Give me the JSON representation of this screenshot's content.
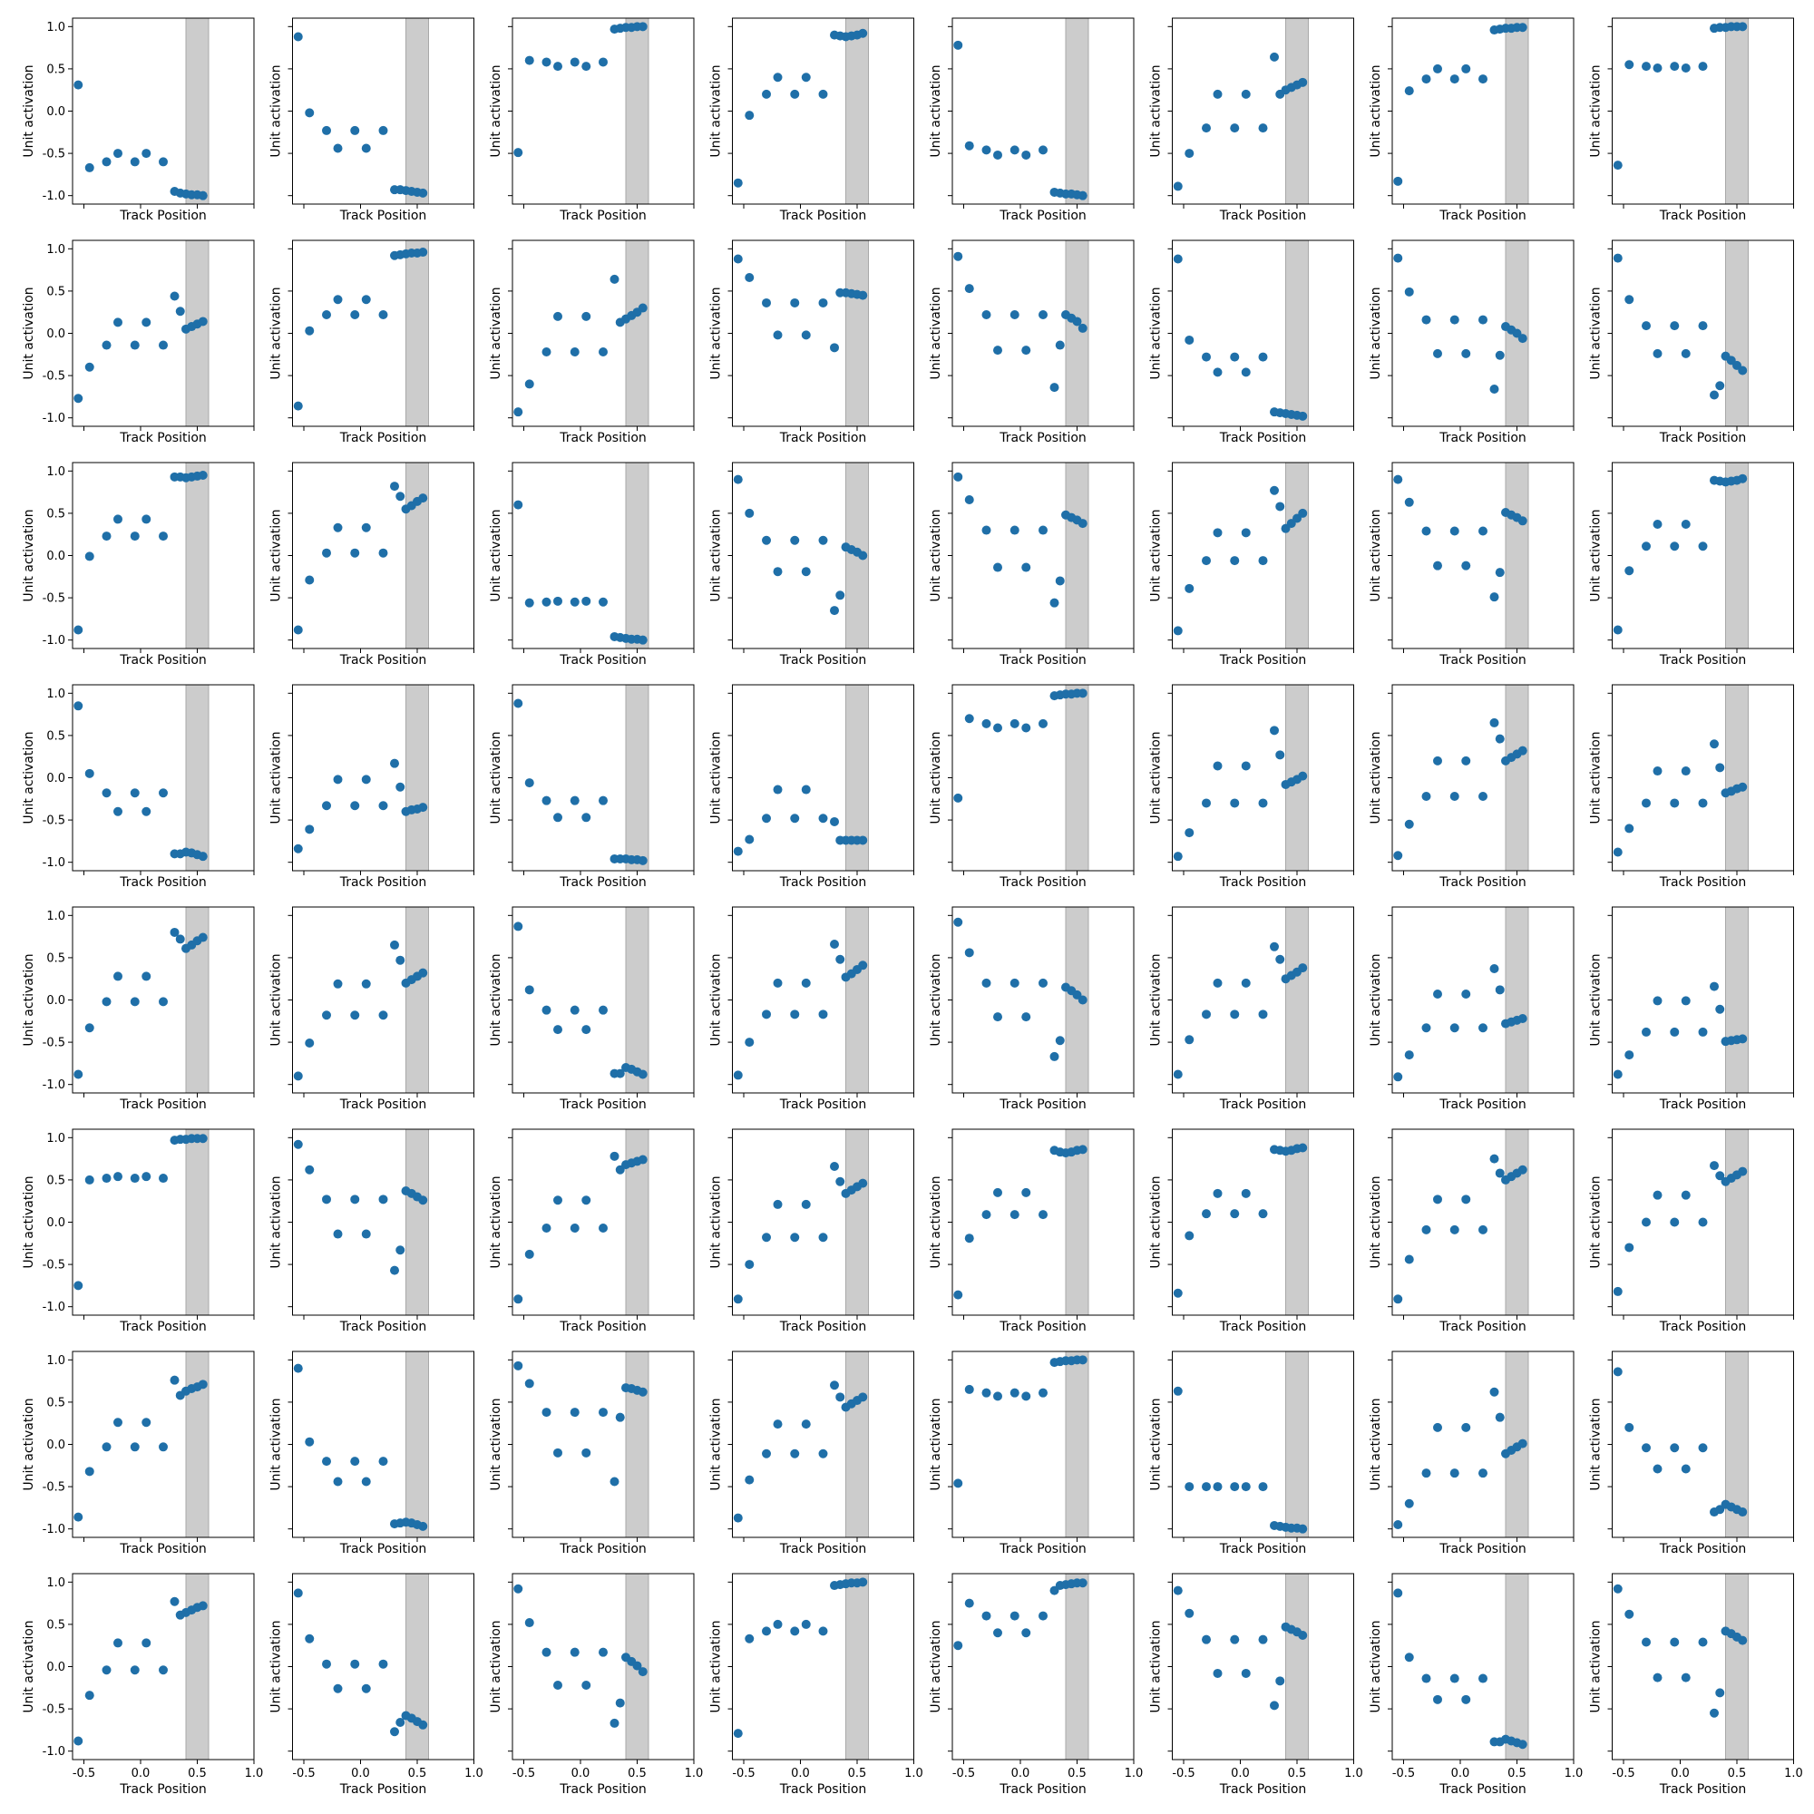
{
  "chart_data": {
    "type": "scatter",
    "layout": "8x8 grid of scatter subplots",
    "xlabel": "Track Position",
    "ylabel": "Unit activation",
    "xlim": [
      -0.6,
      1.0
    ],
    "ylim": [
      -1.1,
      1.1
    ],
    "x_ticks": [
      -0.5,
      0.0,
      0.5,
      1.0
    ],
    "x_tick_labels": [
      "-0.5",
      "0.0",
      "0.5",
      "1.0"
    ],
    "y_ticks": [
      -1.0,
      -0.5,
      0.0,
      0.5,
      1.0
    ],
    "y_tick_labels": [
      "-1.0",
      "-0.5",
      "0.0",
      "0.5",
      "1.0"
    ],
    "shaded_region": {
      "x_start": 0.4,
      "x_end": 0.6,
      "color": "#cccccc"
    },
    "marker_color": "#1f6fa8",
    "grid": false,
    "legend": "none",
    "x": [
      -0.55,
      -0.45,
      -0.3,
      -0.2,
      -0.05,
      0.05,
      0.2,
      0.3,
      0.35,
      0.4,
      0.45,
      0.5,
      0.55
    ],
    "subplots": [
      {
        "id": 1,
        "y": [
          0.31,
          -0.67,
          -0.6,
          -0.5,
          -0.6,
          -0.5,
          -0.6,
          -0.95,
          -0.97,
          -0.98,
          -0.99,
          -0.99,
          -1.0
        ]
      },
      {
        "id": 2,
        "y": [
          0.88,
          -0.02,
          -0.23,
          -0.44,
          -0.23,
          -0.44,
          -0.23,
          -0.93,
          -0.93,
          -0.94,
          -0.95,
          -0.96,
          -0.97
        ]
      },
      {
        "id": 3,
        "y": [
          -0.49,
          0.6,
          0.58,
          0.53,
          0.58,
          0.53,
          0.58,
          0.97,
          0.98,
          0.99,
          0.99,
          1.0,
          1.0
        ]
      },
      {
        "id": 4,
        "y": [
          -0.85,
          -0.05,
          0.2,
          0.4,
          0.2,
          0.4,
          0.2,
          0.9,
          0.89,
          0.88,
          0.89,
          0.9,
          0.92
        ]
      },
      {
        "id": 5,
        "y": [
          0.78,
          -0.41,
          -0.46,
          -0.52,
          -0.46,
          -0.52,
          -0.46,
          -0.96,
          -0.97,
          -0.98,
          -0.98,
          -0.99,
          -1.0
        ]
      },
      {
        "id": 6,
        "y": [
          -0.89,
          -0.5,
          -0.2,
          0.2,
          -0.2,
          0.2,
          -0.2,
          0.64,
          0.2,
          0.25,
          0.28,
          0.31,
          0.34
        ]
      },
      {
        "id": 7,
        "y": [
          -0.83,
          0.24,
          0.38,
          0.5,
          0.38,
          0.5,
          0.38,
          0.96,
          0.97,
          0.98,
          0.98,
          0.99,
          0.99
        ]
      },
      {
        "id": 8,
        "y": [
          -0.64,
          0.55,
          0.53,
          0.51,
          0.53,
          0.51,
          0.53,
          0.98,
          0.99,
          0.99,
          1.0,
          1.0,
          1.0
        ]
      },
      {
        "id": 9,
        "y": [
          -0.77,
          -0.4,
          -0.14,
          0.13,
          -0.14,
          0.13,
          -0.14,
          0.44,
          0.26,
          0.05,
          0.08,
          0.11,
          0.14
        ]
      },
      {
        "id": 10,
        "y": [
          -0.86,
          0.03,
          0.22,
          0.4,
          0.22,
          0.4,
          0.22,
          0.92,
          0.93,
          0.94,
          0.95,
          0.95,
          0.96
        ]
      },
      {
        "id": 11,
        "y": [
          -0.93,
          -0.6,
          -0.22,
          0.2,
          -0.22,
          0.2,
          -0.22,
          0.64,
          0.13,
          0.17,
          0.21,
          0.25,
          0.3
        ]
      },
      {
        "id": 12,
        "y": [
          0.88,
          0.66,
          0.36,
          -0.02,
          0.36,
          -0.02,
          0.36,
          -0.17,
          0.48,
          0.48,
          0.47,
          0.46,
          0.45
        ]
      },
      {
        "id": 13,
        "y": [
          0.91,
          0.53,
          0.22,
          -0.2,
          0.22,
          -0.2,
          0.22,
          -0.64,
          -0.14,
          0.22,
          0.18,
          0.14,
          0.06
        ]
      },
      {
        "id": 14,
        "y": [
          0.88,
          -0.08,
          -0.28,
          -0.46,
          -0.28,
          -0.46,
          -0.28,
          -0.93,
          -0.94,
          -0.95,
          -0.96,
          -0.97,
          -0.98
        ]
      },
      {
        "id": 15,
        "y": [
          0.89,
          0.49,
          0.16,
          -0.24,
          0.16,
          -0.24,
          0.16,
          -0.66,
          -0.26,
          0.08,
          0.04,
          0.0,
          -0.06
        ]
      },
      {
        "id": 16,
        "y": [
          0.89,
          0.4,
          0.09,
          -0.24,
          0.09,
          -0.24,
          0.09,
          -0.73,
          -0.62,
          -0.27,
          -0.32,
          -0.38,
          -0.44
        ]
      },
      {
        "id": 17,
        "y": [
          -0.88,
          -0.01,
          0.23,
          0.43,
          0.23,
          0.43,
          0.23,
          0.93,
          0.93,
          0.92,
          0.93,
          0.94,
          0.95
        ]
      },
      {
        "id": 18,
        "y": [
          -0.88,
          -0.29,
          0.03,
          0.33,
          0.03,
          0.33,
          0.03,
          0.82,
          0.7,
          0.55,
          0.59,
          0.64,
          0.68
        ]
      },
      {
        "id": 19,
        "y": [
          0.6,
          -0.56,
          -0.55,
          -0.54,
          -0.55,
          -0.54,
          -0.55,
          -0.96,
          -0.97,
          -0.98,
          -0.99,
          -0.99,
          -1.0
        ]
      },
      {
        "id": 20,
        "y": [
          0.9,
          0.5,
          0.18,
          -0.19,
          0.18,
          -0.19,
          0.18,
          -0.65,
          -0.47,
          0.1,
          0.07,
          0.04,
          0.0
        ]
      },
      {
        "id": 21,
        "y": [
          0.93,
          0.66,
          0.3,
          -0.14,
          0.3,
          -0.14,
          0.3,
          -0.56,
          -0.3,
          0.48,
          0.45,
          0.42,
          0.38
        ]
      },
      {
        "id": 22,
        "y": [
          -0.89,
          -0.39,
          -0.06,
          0.27,
          -0.06,
          0.27,
          -0.06,
          0.77,
          0.58,
          0.32,
          0.38,
          0.44,
          0.5
        ]
      },
      {
        "id": 23,
        "y": [
          0.9,
          0.63,
          0.29,
          -0.12,
          0.29,
          -0.12,
          0.29,
          -0.49,
          -0.2,
          0.51,
          0.48,
          0.45,
          0.41
        ]
      },
      {
        "id": 24,
        "y": [
          -0.88,
          -0.18,
          0.11,
          0.37,
          0.11,
          0.37,
          0.11,
          0.89,
          0.88,
          0.87,
          0.88,
          0.89,
          0.91
        ]
      },
      {
        "id": 25,
        "y": [
          0.85,
          0.05,
          -0.18,
          -0.4,
          -0.18,
          -0.4,
          -0.18,
          -0.9,
          -0.9,
          -0.88,
          -0.89,
          -0.91,
          -0.93
        ]
      },
      {
        "id": 26,
        "y": [
          -0.84,
          -0.61,
          -0.33,
          -0.02,
          -0.33,
          -0.02,
          -0.33,
          0.17,
          -0.11,
          -0.4,
          -0.38,
          -0.37,
          -0.35
        ]
      },
      {
        "id": 27,
        "y": [
          0.88,
          -0.06,
          -0.27,
          -0.47,
          -0.27,
          -0.47,
          -0.27,
          -0.96,
          -0.96,
          -0.96,
          -0.97,
          -0.97,
          -0.98
        ]
      },
      {
        "id": 28,
        "y": [
          -0.87,
          -0.73,
          -0.48,
          -0.14,
          -0.48,
          -0.14,
          -0.48,
          -0.52,
          -0.74,
          -0.74,
          -0.74,
          -0.74,
          -0.74
        ]
      },
      {
        "id": 29,
        "y": [
          -0.24,
          0.7,
          0.64,
          0.59,
          0.64,
          0.59,
          0.64,
          0.97,
          0.98,
          0.99,
          0.99,
          1.0,
          1.0
        ]
      },
      {
        "id": 30,
        "y": [
          -0.93,
          -0.65,
          -0.3,
          0.14,
          -0.3,
          0.14,
          -0.3,
          0.56,
          0.27,
          -0.08,
          -0.05,
          -0.02,
          0.02
        ]
      },
      {
        "id": 31,
        "y": [
          -0.92,
          -0.55,
          -0.22,
          0.2,
          -0.22,
          0.2,
          -0.22,
          0.65,
          0.46,
          0.2,
          0.24,
          0.28,
          0.32
        ]
      },
      {
        "id": 32,
        "y": [
          -0.88,
          -0.6,
          -0.3,
          0.08,
          -0.3,
          0.08,
          -0.3,
          0.4,
          0.12,
          -0.18,
          -0.16,
          -0.13,
          -0.11
        ]
      },
      {
        "id": 33,
        "y": [
          -0.88,
          -0.33,
          -0.02,
          0.28,
          -0.02,
          0.28,
          -0.02,
          0.8,
          0.72,
          0.61,
          0.65,
          0.7,
          0.74
        ]
      },
      {
        "id": 34,
        "y": [
          -0.9,
          -0.51,
          -0.18,
          0.19,
          -0.18,
          0.19,
          -0.18,
          0.65,
          0.47,
          0.2,
          0.24,
          0.28,
          0.32
        ]
      },
      {
        "id": 35,
        "y": [
          0.87,
          0.12,
          -0.12,
          -0.35,
          -0.12,
          -0.35,
          -0.12,
          -0.87,
          -0.87,
          -0.8,
          -0.82,
          -0.85,
          -0.88
        ]
      },
      {
        "id": 36,
        "y": [
          -0.89,
          -0.5,
          -0.17,
          0.2,
          -0.17,
          0.2,
          -0.17,
          0.66,
          0.48,
          0.27,
          0.31,
          0.36,
          0.41
        ]
      },
      {
        "id": 37,
        "y": [
          0.92,
          0.56,
          0.2,
          -0.2,
          0.2,
          -0.2,
          0.2,
          -0.67,
          -0.48,
          0.15,
          0.11,
          0.06,
          0.0
        ]
      },
      {
        "id": 38,
        "y": [
          -0.88,
          -0.47,
          -0.17,
          0.2,
          -0.17,
          0.2,
          -0.17,
          0.63,
          0.48,
          0.25,
          0.29,
          0.33,
          0.38
        ]
      },
      {
        "id": 39,
        "y": [
          -0.91,
          -0.65,
          -0.33,
          0.07,
          -0.33,
          0.07,
          -0.33,
          0.37,
          0.12,
          -0.28,
          -0.26,
          -0.24,
          -0.22
        ]
      },
      {
        "id": 40,
        "y": [
          -0.88,
          -0.65,
          -0.38,
          -0.01,
          -0.38,
          -0.01,
          -0.38,
          0.16,
          -0.11,
          -0.49,
          -0.48,
          -0.47,
          -0.46
        ]
      },
      {
        "id": 41,
        "y": [
          -0.75,
          0.5,
          0.52,
          0.54,
          0.52,
          0.54,
          0.52,
          0.97,
          0.98,
          0.98,
          0.99,
          0.99,
          0.99
        ]
      },
      {
        "id": 42,
        "y": [
          0.92,
          0.62,
          0.27,
          -0.14,
          0.27,
          -0.14,
          0.27,
          -0.57,
          -0.33,
          0.37,
          0.34,
          0.3,
          0.26
        ]
      },
      {
        "id": 43,
        "y": [
          -0.91,
          -0.38,
          -0.07,
          0.26,
          -0.07,
          0.26,
          -0.07,
          0.78,
          0.62,
          0.68,
          0.7,
          0.72,
          0.74
        ]
      },
      {
        "id": 44,
        "y": [
          -0.91,
          -0.5,
          -0.18,
          0.21,
          -0.18,
          0.21,
          -0.18,
          0.66,
          0.48,
          0.34,
          0.38,
          0.42,
          0.46
        ]
      },
      {
        "id": 45,
        "y": [
          -0.86,
          -0.19,
          0.09,
          0.35,
          0.09,
          0.35,
          0.09,
          0.85,
          0.83,
          0.82,
          0.83,
          0.85,
          0.86
        ]
      },
      {
        "id": 46,
        "y": [
          -0.84,
          -0.16,
          0.1,
          0.34,
          0.1,
          0.34,
          0.1,
          0.86,
          0.85,
          0.84,
          0.85,
          0.87,
          0.88
        ]
      },
      {
        "id": 47,
        "y": [
          -0.91,
          -0.44,
          -0.09,
          0.27,
          -0.09,
          0.27,
          -0.09,
          0.75,
          0.58,
          0.5,
          0.54,
          0.58,
          0.62
        ]
      },
      {
        "id": 48,
        "y": [
          -0.82,
          -0.3,
          0.0,
          0.32,
          0.0,
          0.32,
          0.0,
          0.67,
          0.55,
          0.48,
          0.52,
          0.56,
          0.6
        ]
      },
      {
        "id": 49,
        "y": [
          -0.86,
          -0.32,
          -0.03,
          0.26,
          -0.03,
          0.26,
          -0.03,
          0.76,
          0.58,
          0.63,
          0.66,
          0.68,
          0.71
        ]
      },
      {
        "id": 50,
        "y": [
          0.9,
          0.03,
          -0.2,
          -0.44,
          -0.2,
          -0.44,
          -0.2,
          -0.94,
          -0.93,
          -0.92,
          -0.93,
          -0.95,
          -0.97
        ]
      },
      {
        "id": 51,
        "y": [
          0.93,
          0.72,
          0.38,
          -0.1,
          0.38,
          -0.1,
          0.38,
          -0.44,
          0.32,
          0.67,
          0.66,
          0.64,
          0.62
        ]
      },
      {
        "id": 52,
        "y": [
          -0.87,
          -0.42,
          -0.11,
          0.24,
          -0.11,
          0.24,
          -0.11,
          0.7,
          0.56,
          0.44,
          0.48,
          0.52,
          0.56
        ]
      },
      {
        "id": 53,
        "y": [
          -0.46,
          0.65,
          0.61,
          0.57,
          0.61,
          0.57,
          0.61,
          0.97,
          0.98,
          0.99,
          0.99,
          1.0,
          1.0
        ]
      },
      {
        "id": 54,
        "y": [
          0.63,
          -0.5,
          -0.5,
          -0.5,
          -0.5,
          -0.5,
          -0.5,
          -0.96,
          -0.97,
          -0.98,
          -0.99,
          -0.99,
          -1.0
        ]
      },
      {
        "id": 55,
        "y": [
          -0.95,
          -0.7,
          -0.34,
          0.2,
          -0.34,
          0.2,
          -0.34,
          0.62,
          0.32,
          -0.11,
          -0.07,
          -0.03,
          0.01
        ]
      },
      {
        "id": 56,
        "y": [
          0.86,
          0.2,
          -0.04,
          -0.29,
          -0.04,
          -0.29,
          -0.04,
          -0.8,
          -0.77,
          -0.71,
          -0.74,
          -0.77,
          -0.8
        ]
      },
      {
        "id": 57,
        "y": [
          -0.88,
          -0.34,
          -0.04,
          0.28,
          -0.04,
          0.28,
          -0.04,
          0.77,
          0.61,
          0.64,
          0.67,
          0.7,
          0.72
        ]
      },
      {
        "id": 58,
        "y": [
          0.87,
          0.33,
          0.03,
          -0.26,
          0.03,
          -0.26,
          0.03,
          -0.77,
          -0.66,
          -0.58,
          -0.61,
          -0.65,
          -0.69
        ]
      },
      {
        "id": 59,
        "y": [
          0.92,
          0.52,
          0.17,
          -0.22,
          0.17,
          -0.22,
          0.17,
          -0.67,
          -0.43,
          0.11,
          0.06,
          0.01,
          -0.06
        ]
      },
      {
        "id": 60,
        "y": [
          -0.79,
          0.33,
          0.42,
          0.5,
          0.42,
          0.5,
          0.42,
          0.96,
          0.97,
          0.98,
          0.99,
          0.99,
          1.0
        ]
      },
      {
        "id": 61,
        "y": [
          0.25,
          0.75,
          0.6,
          0.4,
          0.6,
          0.4,
          0.6,
          0.9,
          0.96,
          0.97,
          0.98,
          0.99,
          0.99
        ]
      },
      {
        "id": 62,
        "y": [
          0.9,
          0.63,
          0.32,
          -0.08,
          0.32,
          -0.08,
          0.32,
          -0.46,
          -0.17,
          0.47,
          0.44,
          0.41,
          0.37
        ]
      },
      {
        "id": 63,
        "y": [
          0.87,
          0.11,
          -0.14,
          -0.39,
          -0.14,
          -0.39,
          -0.14,
          -0.89,
          -0.89,
          -0.86,
          -0.88,
          -0.9,
          -0.92
        ]
      },
      {
        "id": 64,
        "y": [
          0.92,
          0.62,
          0.29,
          -0.13,
          0.29,
          -0.13,
          0.29,
          -0.55,
          -0.31,
          0.42,
          0.39,
          0.35,
          0.31
        ]
      }
    ]
  }
}
